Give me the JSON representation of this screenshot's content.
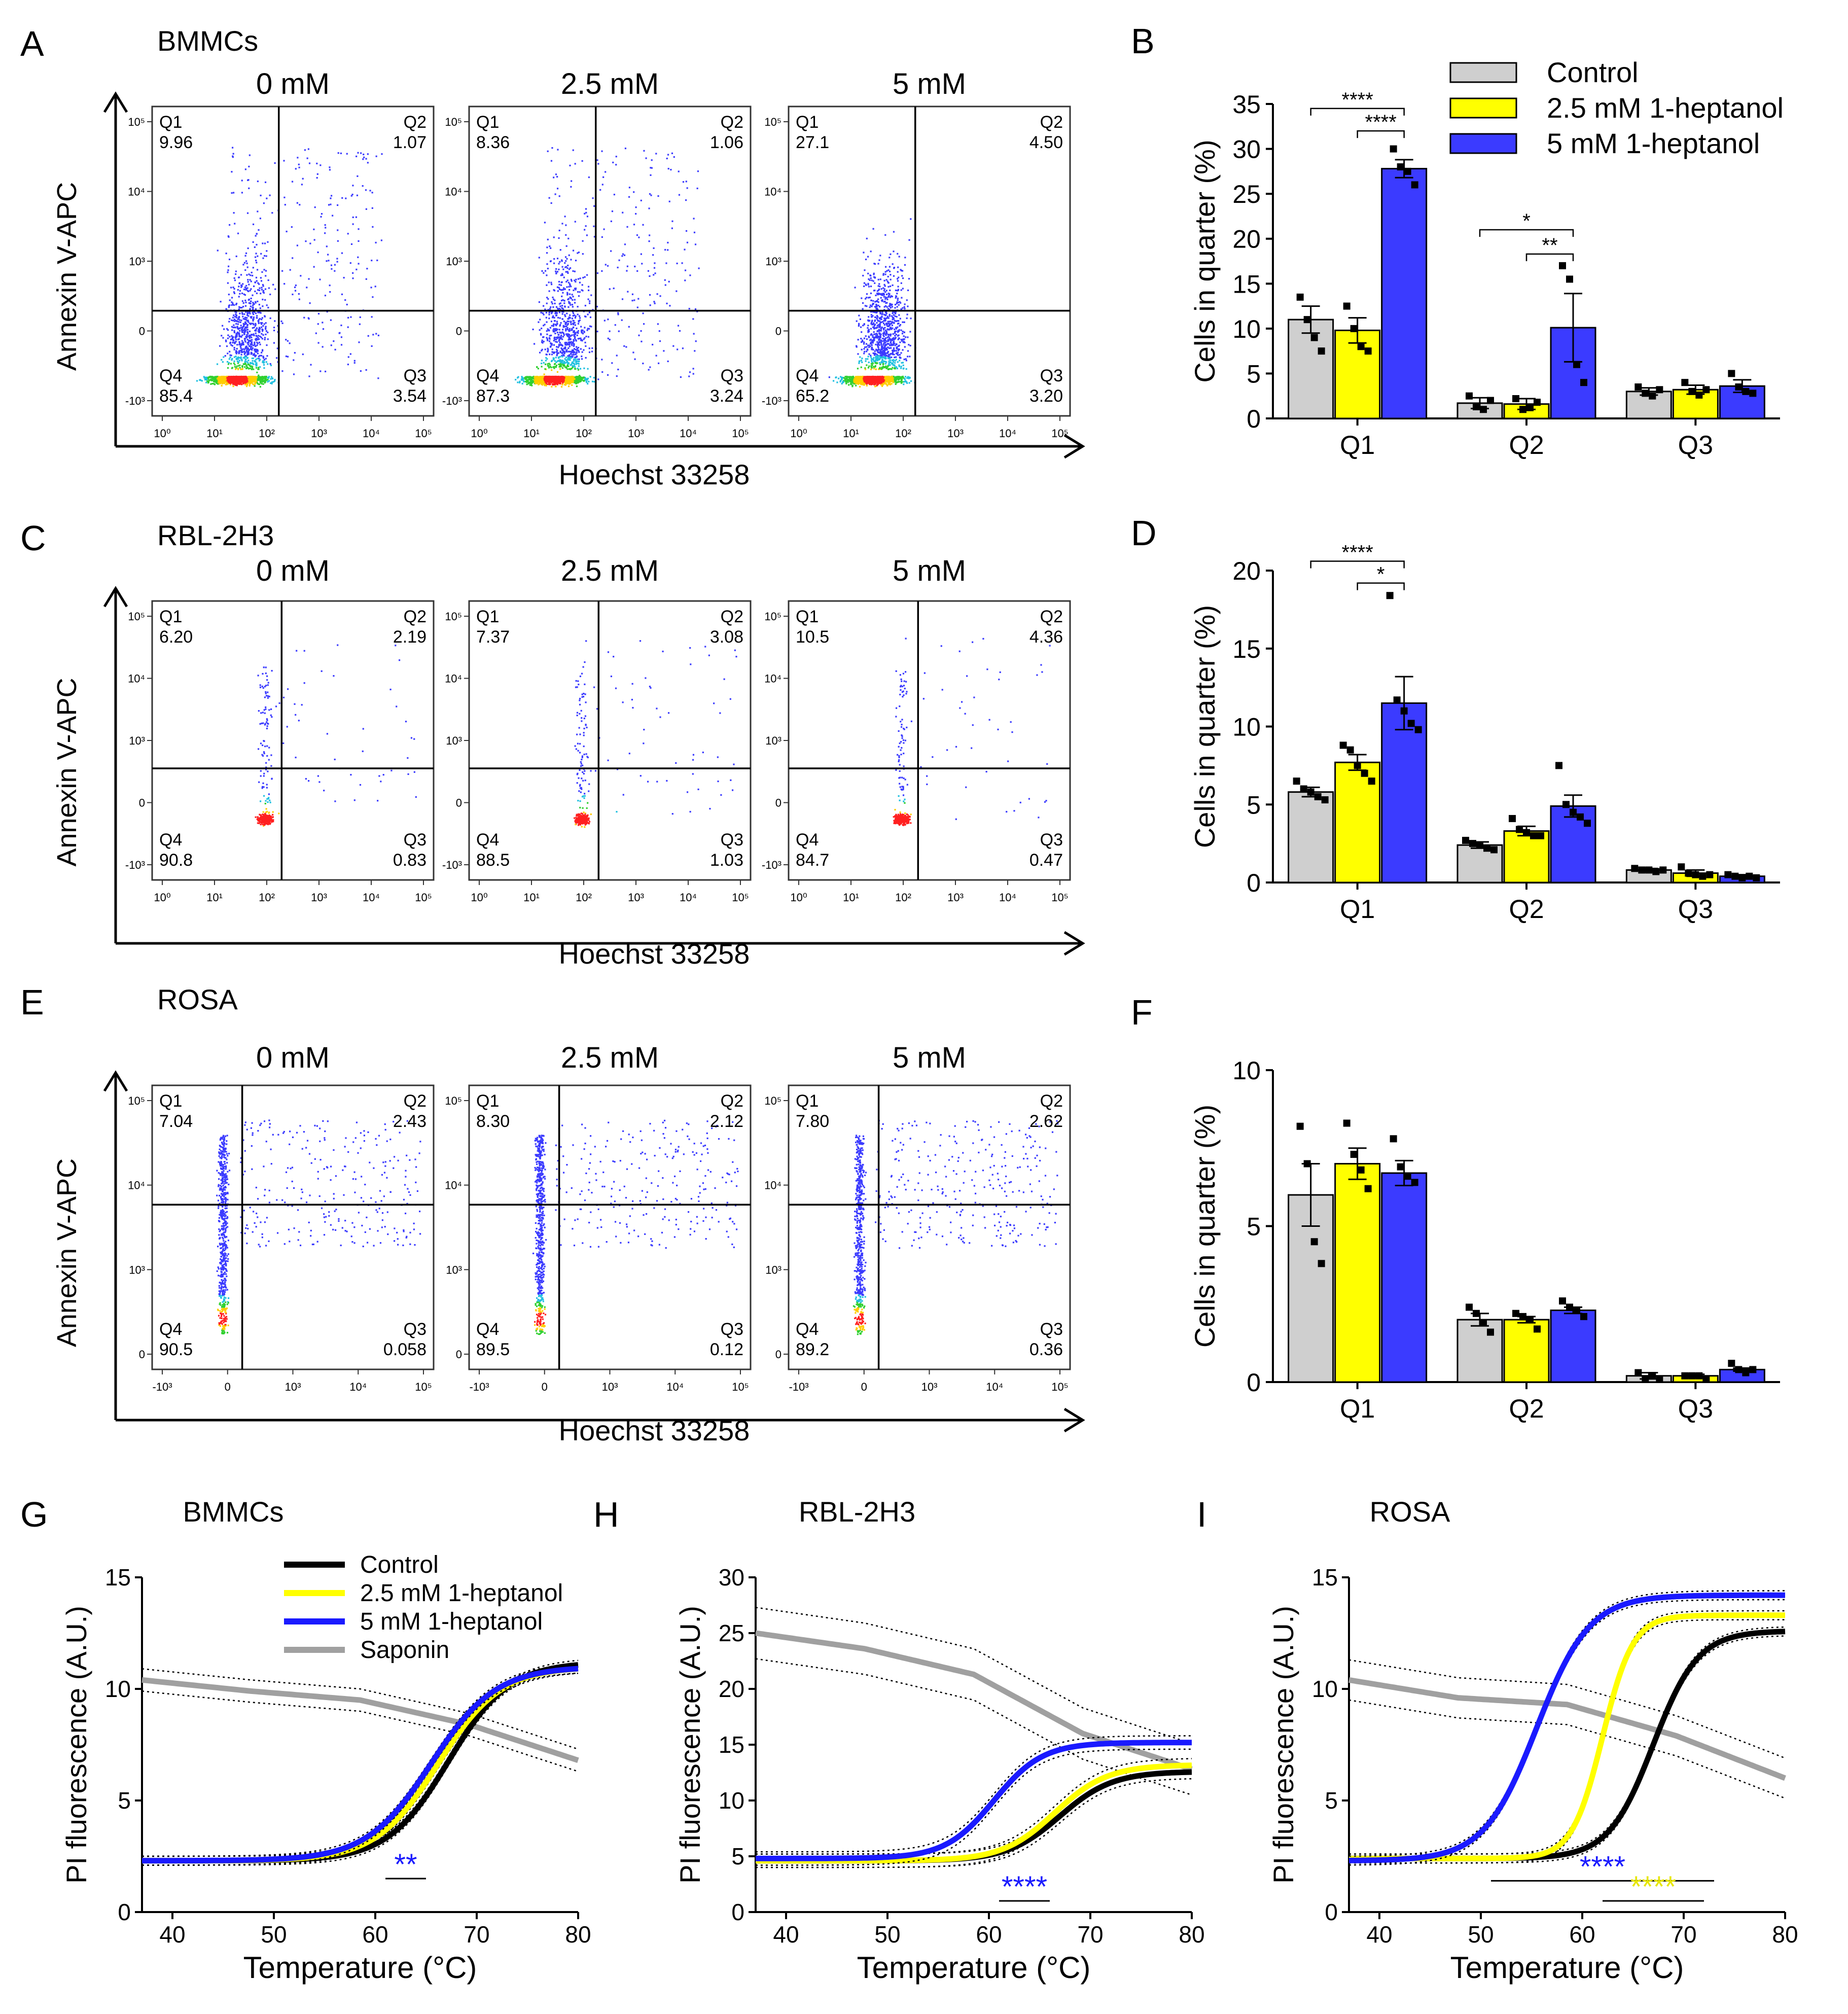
{
  "colors": {
    "control": "#cfcfcf",
    "hept25": "#ffff00",
    "hept5": "#3b3bff",
    "line_control": "#000000",
    "line_25": "#ffff00",
    "line_5": "#1a1aff",
    "line_saponin": "#a0a0a0",
    "sig_blue": "#1a1aff",
    "sig_yellow": "#e6e600"
  },
  "flow_rows": [
    {
      "letter": "A",
      "cell": "BMMCs",
      "axis": "log",
      "ylabel": "Annexin V-APC",
      "xlabel": "Hoechst 33258",
      "density": "high",
      "panels": [
        {
          "title": "0 mM",
          "q1": "9.96",
          "q2": "1.07",
          "q3": "3.54",
          "q4": "85.4",
          "shape": "bmmc",
          "level": 0.3
        },
        {
          "title": "2.5 mM",
          "q1": "8.36",
          "q2": "1.06",
          "q3": "3.24",
          "q4": "87.3",
          "shape": "bmmc",
          "level": 0.28
        },
        {
          "title": "5 mM",
          "q1": "27.1",
          "q2": "4.50",
          "q3": "3.20",
          "q4": "65.2",
          "shape": "bmmc",
          "level": 1.0
        }
      ]
    },
    {
      "letter": "C",
      "cell": "RBL-2H3",
      "axis": "log",
      "ylabel": "Annexin V-APC",
      "xlabel": "Hoechst 33258",
      "density": "low",
      "panels": [
        {
          "title": "0 mM",
          "q1": "6.20",
          "q2": "2.19",
          "q3": "0.83",
          "q4": "90.8",
          "shape": "rbl",
          "level": 0.3
        },
        {
          "title": "2.5 mM",
          "q1": "7.37",
          "q2": "3.08",
          "q3": "1.03",
          "q4": "88.5",
          "shape": "rbl",
          "level": 0.5
        },
        {
          "title": "5 mM",
          "q1": "10.5",
          "q2": "4.36",
          "q3": "0.47",
          "q4": "84.7",
          "shape": "rbl",
          "level": 0.8
        }
      ]
    },
    {
      "letter": "E",
      "cell": "ROSA",
      "axis": "biexp",
      "ylabel": "Annexin V-APC",
      "xlabel": "Hoechst 33258",
      "density": "mid",
      "panels": [
        {
          "title": "0 mM",
          "q1": "7.04",
          "q2": "2.43",
          "q3": "0.058",
          "q4": "90.5",
          "shape": "rosa",
          "level": 0.4
        },
        {
          "title": "2.5 mM",
          "q1": "8.30",
          "q2": "2.12",
          "q3": "0.12",
          "q4": "89.5",
          "shape": "rosa",
          "level": 0.5
        },
        {
          "title": "5 mM",
          "q1": "7.80",
          "q2": "2.62",
          "q3": "0.36",
          "q4": "89.2",
          "shape": "rosa",
          "level": 0.8
        }
      ]
    }
  ],
  "flow_ticks": {
    "log_x": [
      "10⁰",
      "10¹",
      "10²",
      "10³",
      "10⁴",
      "10⁵"
    ],
    "log_y": [
      "-10³",
      "0",
      "10³",
      "10⁴",
      "10⁵"
    ],
    "biexp_x": [
      "-10³",
      "0",
      "10³",
      "10⁴",
      "10⁵"
    ],
    "biexp_y": [
      "0",
      "10³",
      "10⁴",
      "10⁵"
    ]
  },
  "chart_data": [
    {
      "type": "bar",
      "letter": "B",
      "categories": [
        "Q1",
        "Q2",
        "Q3"
      ],
      "series": [
        {
          "name": "Control",
          "values": [
            11.0,
            1.7,
            3.0
          ],
          "errors": [
            1.5,
            0.6,
            0.4
          ],
          "points": [
            [
              13.5,
              11,
              9,
              7.5
            ],
            [
              2.5,
              1.3,
              1.0,
              2.0
            ],
            [
              3.5,
              2.8,
              2.5,
              3.2
            ]
          ]
        },
        {
          "name": "2.5 mM 1-heptanol",
          "values": [
            9.8,
            1.6,
            3.2
          ],
          "errors": [
            1.4,
            0.6,
            0.5
          ],
          "points": [
            [
              12.5,
              10,
              8,
              7.5
            ],
            [
              2.2,
              1.0,
              1.2,
              1.8
            ],
            [
              4.0,
              3.0,
              2.6,
              3.2
            ]
          ]
        },
        {
          "name": "5 mM 1-heptanol",
          "values": [
            27.8,
            10.1,
            3.6
          ],
          "errors": [
            1.0,
            3.8,
            0.7
          ],
          "points": [
            [
              30,
              28,
              27.5,
              26
            ],
            [
              17,
              15.5,
              6,
              4
            ],
            [
              5,
              3.5,
              3,
              2.8
            ]
          ]
        }
      ],
      "ylabel": "Cells in quarter (%)",
      "ylim": [
        0,
        35
      ],
      "yticks": [
        "0",
        "5",
        "10",
        "15",
        "20",
        "25",
        "30",
        "35"
      ],
      "legend": [
        "Control",
        "2.5 mM 1-heptanol",
        "5 mM 1-heptanol"
      ],
      "sig": [
        {
          "cat": 0,
          "from": 0,
          "to": 2,
          "label": "****",
          "level": 34.5
        },
        {
          "cat": 0,
          "from": 1,
          "to": 2,
          "label": "****",
          "level": 32.0
        },
        {
          "cat": 1,
          "from": 0,
          "to": 2,
          "label": "*",
          "level": 21.0
        },
        {
          "cat": 1,
          "from": 1,
          "to": 2,
          "label": "**",
          "level": 18.3
        }
      ]
    },
    {
      "type": "bar",
      "letter": "D",
      "categories": [
        "Q1",
        "Q2",
        "Q3"
      ],
      "series": [
        {
          "name": "Control",
          "values": [
            5.8,
            2.4,
            0.8
          ],
          "errors": [
            0.3,
            0.2,
            0.1
          ],
          "points": [
            [
              6.5,
              6.0,
              5.8,
              5.5,
              5.3
            ],
            [
              2.7,
              2.5,
              2.4,
              2.2,
              2.1
            ],
            [
              0.9,
              0.8,
              0.8,
              0.7,
              0.8
            ]
          ]
        },
        {
          "name": "2.5 mM 1-heptanol",
          "values": [
            7.7,
            3.3,
            0.6
          ],
          "errors": [
            0.5,
            0.3,
            0.2
          ],
          "points": [
            [
              8.8,
              8.5,
              7.5,
              7.0,
              6.5
            ],
            [
              4.1,
              3.4,
              3.2,
              3.0,
              3.0
            ],
            [
              1.0,
              0.6,
              0.5,
              0.4,
              0.5
            ]
          ]
        },
        {
          "name": "5 mM 1-heptanol",
          "values": [
            11.5,
            4.9,
            0.4
          ],
          "errors": [
            1.7,
            0.7,
            0.1
          ],
          "points": [
            [
              18.4,
              11.7,
              11.0,
              10.2,
              9.8
            ],
            [
              7.5,
              5.0,
              4.5,
              4.2,
              3.8
            ],
            [
              0.5,
              0.4,
              0.3,
              0.4,
              0.3
            ]
          ]
        }
      ],
      "ylabel": "Cells in quarter (%)",
      "ylim": [
        0,
        20
      ],
      "yticks": [
        "0",
        "5",
        "10",
        "15",
        "20"
      ],
      "sig": [
        {
          "cat": 0,
          "from": 0,
          "to": 2,
          "label": "****",
          "level": 20.6
        },
        {
          "cat": 0,
          "from": 1,
          "to": 2,
          "label": "*",
          "level": 19.2
        }
      ]
    },
    {
      "type": "bar",
      "letter": "F",
      "categories": [
        "Q1",
        "Q2",
        "Q3"
      ],
      "series": [
        {
          "name": "Control",
          "values": [
            6.0,
            2.0,
            0.2
          ],
          "errors": [
            1.0,
            0.2,
            0.1
          ],
          "points": [
            [
              8.2,
              7.0,
              4.5,
              3.8
            ],
            [
              2.4,
              2.2,
              1.9,
              1.6
            ],
            [
              0.3,
              0.1,
              0.2,
              0.1
            ]
          ]
        },
        {
          "name": "2.5 mM 1-heptanol",
          "values": [
            7.0,
            2.0,
            0.2
          ],
          "errors": [
            0.5,
            0.1,
            0.05
          ],
          "points": [
            [
              8.3,
              7.3,
              6.8,
              6.2
            ],
            [
              2.2,
              2.1,
              2.0,
              1.7
            ],
            [
              0.2,
              0.2,
              0.2,
              0.1
            ]
          ]
        },
        {
          "name": "5 mM 1-heptanol",
          "values": [
            6.7,
            2.3,
            0.4
          ],
          "errors": [
            0.4,
            0.1,
            0.05
          ],
          "points": [
            [
              7.8,
              6.9,
              6.6,
              6.4
            ],
            [
              2.6,
              2.4,
              2.3,
              2.1
            ],
            [
              0.6,
              0.4,
              0.3,
              0.4
            ]
          ]
        }
      ],
      "ylabel": "Cells in quarter (%)",
      "ylim": [
        0,
        10
      ],
      "yticks": [
        "0",
        "5",
        "10"
      ],
      "sig": []
    },
    {
      "type": "line",
      "letter": "G",
      "title": "BMMCs",
      "xlabel": "Temperature (°C)",
      "ylabel": "PI fluorescence (A.U.)",
      "xlim": [
        37,
        80
      ],
      "ylim": [
        0,
        15
      ],
      "xticks": [
        "40",
        "50",
        "60",
        "70",
        "80"
      ],
      "yticks": [
        "0",
        "5",
        "10",
        "15"
      ],
      "legend": [
        "Control",
        "2.5 mM 1-heptanol",
        "5 mM 1-heptanol",
        "Saponin"
      ],
      "series": [
        {
          "name": "Saponin",
          "kind": "linear",
          "p": [
            10.4,
            9.9,
            9.5,
            8.4,
            6.8
          ],
          "band": 0.5
        },
        {
          "name": "Control",
          "kind": "sigmoid",
          "base": 2.3,
          "top": 11.2,
          "mid": 67.2,
          "k": 3.0,
          "band": 0.2
        },
        {
          "name": "2.5 mM 1-heptanol",
          "kind": "sigmoid",
          "base": 2.3,
          "top": 11.0,
          "mid": 66.2,
          "k": 3.1,
          "band": 0.2
        },
        {
          "name": "5 mM 1-heptanol",
          "kind": "sigmoid",
          "base": 2.3,
          "top": 11.0,
          "mid": 65.5,
          "k": 3.2,
          "band": 0.2
        }
      ],
      "sig": [
        {
          "label": "**",
          "color": "sig_blue",
          "x1": 61,
          "x2": 65,
          "y": 1.5
        }
      ]
    },
    {
      "type": "line",
      "letter": "H",
      "title": "RBL-2H3",
      "xlabel": "Temperature (°C)",
      "ylabel": "PI fluorescence (A.U.)",
      "xlim": [
        37,
        80
      ],
      "ylim": [
        0,
        30
      ],
      "xticks": [
        "40",
        "50",
        "60",
        "70",
        "80"
      ],
      "yticks": [
        "0",
        "5",
        "10",
        "15",
        "20",
        "25",
        "30"
      ],
      "series": [
        {
          "name": "Saponin",
          "kind": "linear",
          "p": [
            25.0,
            23.6,
            21.3,
            16.0,
            12.8
          ],
          "band": 2.3
        },
        {
          "name": "Control",
          "kind": "sigmoid",
          "base": 4.6,
          "top": 12.6,
          "mid": 67.0,
          "k": 2.6,
          "band": 0.6
        },
        {
          "name": "2.5 mM 1-heptanol",
          "kind": "sigmoid",
          "base": 4.6,
          "top": 13.2,
          "mid": 66.5,
          "k": 2.6,
          "band": 0.6
        },
        {
          "name": "5 mM 1-heptanol",
          "kind": "sigmoid",
          "base": 4.8,
          "top": 15.2,
          "mid": 60.5,
          "k": 2.4,
          "band": 0.6
        }
      ],
      "sig": [
        {
          "label": "****",
          "color": "sig_blue",
          "x1": 61,
          "x2": 66,
          "y": 1.0
        }
      ]
    },
    {
      "type": "line",
      "letter": "I",
      "title": "ROSA",
      "xlabel": "Temperature (°C)",
      "ylabel": "PI fluorescence (A.U.)",
      "xlim": [
        37,
        80
      ],
      "ylim": [
        0,
        15
      ],
      "xticks": [
        "40",
        "50",
        "60",
        "70",
        "80"
      ],
      "yticks": [
        "0",
        "5",
        "10",
        "15"
      ],
      "series": [
        {
          "name": "Saponin",
          "kind": "linear",
          "p": [
            10.4,
            9.6,
            9.3,
            7.9,
            6.0
          ],
          "band": 0.9
        },
        {
          "name": "Control",
          "kind": "sigmoid",
          "base": 2.4,
          "top": 12.6,
          "mid": 67.0,
          "k": 2.2,
          "band": 0.2
        },
        {
          "name": "2.5 mM 1-heptanol",
          "kind": "sigmoid",
          "base": 2.4,
          "top": 13.3,
          "mid": 62.0,
          "k": 1.5,
          "band": 0.2
        },
        {
          "name": "5 mM 1-heptanol",
          "kind": "sigmoid",
          "base": 2.3,
          "top": 14.2,
          "mid": 55.5,
          "k": 2.6,
          "band": 0.2
        }
      ],
      "sig": [
        {
          "label": "****",
          "color": "sig_blue",
          "x1": 51,
          "x2": 73,
          "y": 1.4
        },
        {
          "label": "****",
          "color": "sig_yellow",
          "x1": 62,
          "x2": 72,
          "y": 0.5
        }
      ]
    }
  ]
}
